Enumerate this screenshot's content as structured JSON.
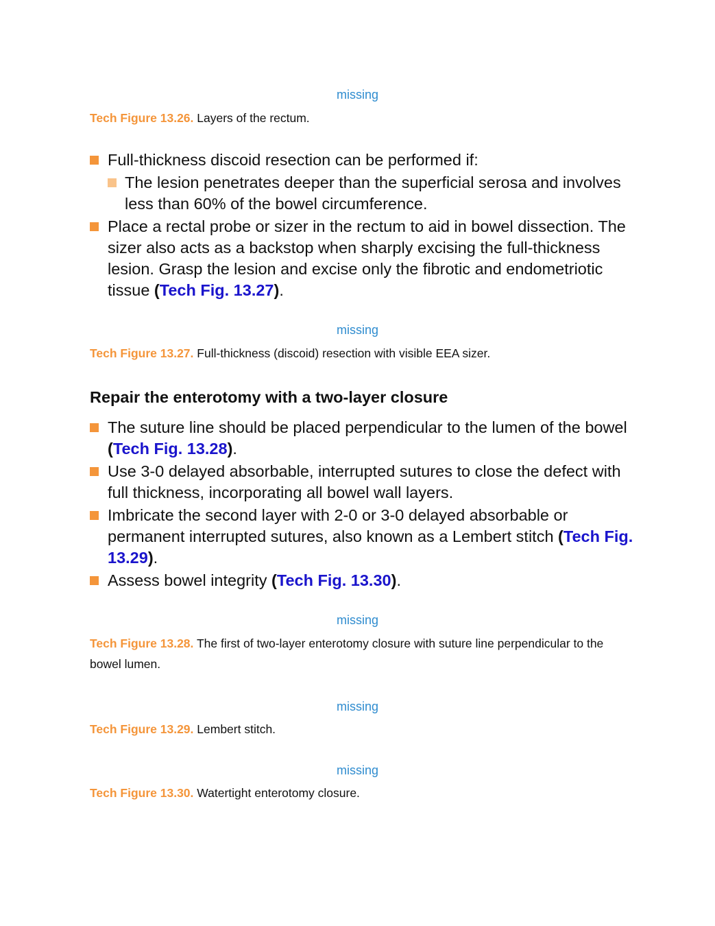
{
  "figures": [
    {
      "placeholder": "missing",
      "label": "Tech Figure 13.26.",
      "caption": "Layers of the rectum."
    },
    {
      "placeholder": "missing",
      "label": "Tech Figure 13.27.",
      "caption": "Full-thickness (discoid) resection with visible EEA sizer."
    },
    {
      "placeholder": "missing",
      "label": "Tech Figure 13.28.",
      "caption": "The first of two-layer enterotomy closure with suture line perpendicular to the bowel lumen."
    },
    {
      "placeholder": "missing",
      "label": "Tech Figure 13.29.",
      "caption": "Lembert stitch."
    },
    {
      "placeholder": "missing",
      "label": "Tech Figure 13.30.",
      "caption": "Watertight enterotomy closure."
    }
  ],
  "list1": {
    "item1": "Full-thickness discoid resection can be performed if:",
    "item1_sub": "The lesion penetrates deeper than the superficial serosa and involves less than 60% of the bowel circumference.",
    "item2": "Place a rectal probe or sizer in the rectum to aid in bowel dissection. The sizer also acts as a backstop when sharply excising the full-thickness lesion. Grasp the lesion and excise only the fibrotic and endometriotic tissue ",
    "item2_ref": "Tech Fig. 13.27"
  },
  "section": {
    "heading": "Repair the enterotomy with a two-layer closure"
  },
  "list2": {
    "item1": "The suture line should be placed perpendicular to the lumen of the bowel ",
    "item1_ref": "Tech Fig. 13.28",
    "item2": "Use 3-0 delayed absorbable, interrupted sutures to close the defect with full thickness, incorporating all bowel wall layers.",
    "item3": "Imbricate the second layer with 2-0 or 3-0 delayed absorbable or permanent interrupted sutures, also known as a Lembert stitch ",
    "item3_ref": "Tech Fig. 13.29",
    "item4": "Assess bowel integrity ",
    "item4_ref": "Tech Fig. 13.30"
  },
  "punct": {
    "open": "(",
    "close": ")",
    "period": "."
  },
  "colors": {
    "figure_label": "#f4953a",
    "missing_text": "#2f8ccf",
    "link": "#1a14cc",
    "bullet": "#f4953a",
    "sub_bullet": "#f9c38a"
  }
}
